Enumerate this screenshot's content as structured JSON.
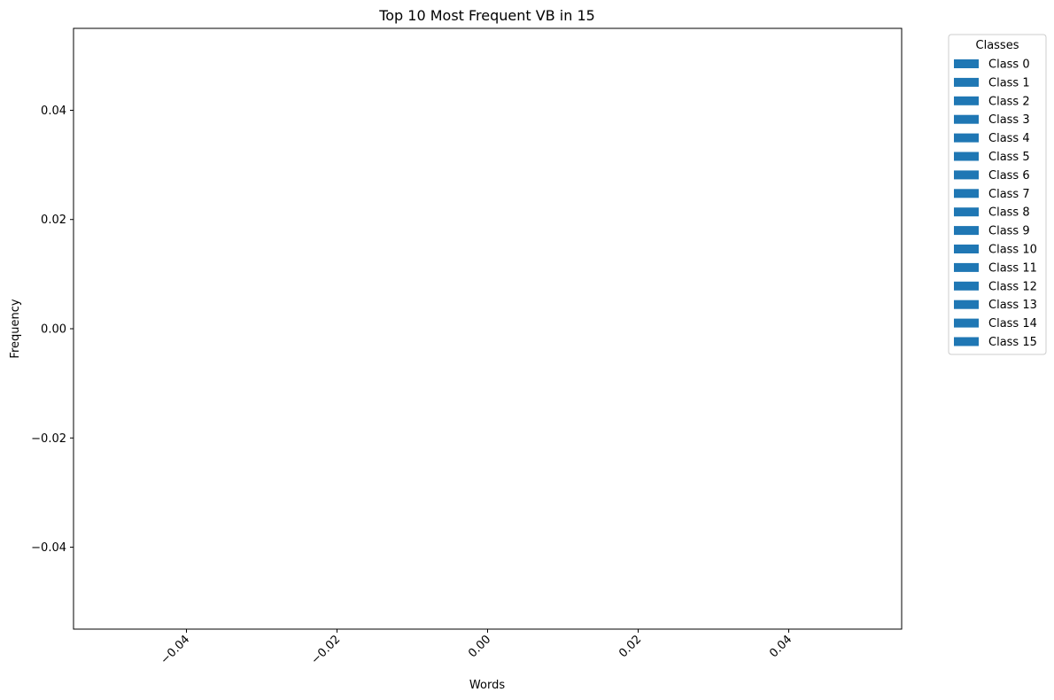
{
  "chart_data": {
    "type": "bar",
    "title": "Top 10 Most Frequent VB in 15",
    "xlabel": "Words",
    "ylabel": "Frequency",
    "xlim": [
      -0.055,
      0.055
    ],
    "ylim": [
      -0.055,
      0.055
    ],
    "xticks": [
      -0.04,
      -0.02,
      0.0,
      0.02,
      0.04
    ],
    "yticks": [
      -0.04,
      -0.02,
      0.0,
      0.02,
      0.04
    ],
    "xtick_labels": [
      "−0.04",
      "−0.02",
      "0.00",
      "0.02",
      "0.04"
    ],
    "ytick_labels": [
      "−0.04",
      "−0.02",
      "0.00",
      "0.02",
      "0.04"
    ],
    "xtick_rotation_deg": 45,
    "grid": false,
    "legend": {
      "title": "Classes",
      "placement": "outside-right-top",
      "color": "#1f77b4",
      "entries": [
        "Class 0",
        "Class 1",
        "Class 2",
        "Class 3",
        "Class 4",
        "Class 5",
        "Class 6",
        "Class 7",
        "Class 8",
        "Class 9",
        "Class 10",
        "Class 11",
        "Class 12",
        "Class 13",
        "Class 14",
        "Class 15"
      ]
    },
    "series": [
      {
        "name": "Class 0",
        "values": []
      },
      {
        "name": "Class 1",
        "values": []
      },
      {
        "name": "Class 2",
        "values": []
      },
      {
        "name": "Class 3",
        "values": []
      },
      {
        "name": "Class 4",
        "values": []
      },
      {
        "name": "Class 5",
        "values": []
      },
      {
        "name": "Class 6",
        "values": []
      },
      {
        "name": "Class 7",
        "values": []
      },
      {
        "name": "Class 8",
        "values": []
      },
      {
        "name": "Class 9",
        "values": []
      },
      {
        "name": "Class 10",
        "values": []
      },
      {
        "name": "Class 11",
        "values": []
      },
      {
        "name": "Class 12",
        "values": []
      },
      {
        "name": "Class 13",
        "values": []
      },
      {
        "name": "Class 14",
        "values": []
      },
      {
        "name": "Class 15",
        "values": []
      }
    ]
  }
}
